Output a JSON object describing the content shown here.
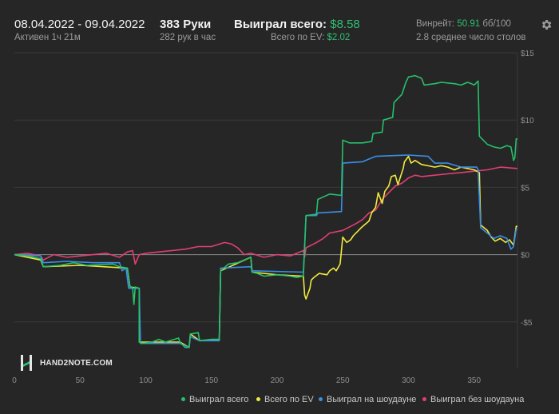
{
  "header": {
    "date_range": "08.04.2022 - 09.04.2022",
    "active_time": "Активен 1ч 21м",
    "hands": "383 Руки",
    "hands_per_hour": "282 рук в час",
    "won_total_label": "Выиграл всего:",
    "won_total_value": "$8.58",
    "ev_total_label": "Всего по EV:",
    "ev_total_value": "$2.02",
    "winrate_label": "Винрейт:",
    "winrate_value": "50.91",
    "winrate_unit": "бб/100",
    "avg_tables": "2.8 среднее число столов"
  },
  "logo_text": "HAND2NOTE.COM",
  "icons": {
    "settings": "gear-icon",
    "logo": "hand2note-logo-icon"
  },
  "colors": {
    "background": "#262626",
    "accent_green": "#2fbf71",
    "won_total": "#27c06b",
    "ev": "#f2ea3c",
    "showdown": "#3a8fe8",
    "non_showdown": "#e23f72",
    "grid": "#3a3a3a",
    "zero_line": "#8a8a8a"
  },
  "chart_data": {
    "type": "line",
    "title": "",
    "xlabel": "",
    "ylabel": "",
    "xlim": [
      0,
      383
    ],
    "ylim": [
      -8.4,
      15
    ],
    "x_ticks": [
      0,
      50,
      100,
      150,
      200,
      250,
      300,
      350
    ],
    "x_tick_labels": [
      "0",
      "50",
      "100",
      "150",
      "200",
      "250",
      "300",
      "350"
    ],
    "y_ticks": [
      15,
      10,
      5,
      0,
      -5
    ],
    "y_tick_labels": [
      "$15",
      "$10",
      "$5",
      "$0",
      "-$5"
    ],
    "y_axis_position": "right",
    "grid": true,
    "legend_position": "bottom-right",
    "series": [
      {
        "name": "Выиграл всего",
        "color": "#27c06b",
        "points": [
          [
            0,
            0
          ],
          [
            10,
            -0.1
          ],
          [
            20,
            -0.3
          ],
          [
            22,
            -0.9
          ],
          [
            35,
            -0.8
          ],
          [
            45,
            -0.6
          ],
          [
            55,
            -0.8
          ],
          [
            75,
            -0.7
          ],
          [
            80,
            -0.9
          ],
          [
            86,
            -1
          ],
          [
            88,
            -2.4
          ],
          [
            90,
            -2.4
          ],
          [
            91,
            -3.7
          ],
          [
            92,
            -2.4
          ],
          [
            95,
            -2.5
          ],
          [
            95,
            -6.5
          ],
          [
            97,
            -6.6
          ],
          [
            105,
            -6.5
          ],
          [
            110,
            -6.3
          ],
          [
            115,
            -6.5
          ],
          [
            125,
            -6.2
          ],
          [
            126,
            -6.5
          ],
          [
            130,
            -6.9
          ],
          [
            133,
            -6.9
          ],
          [
            134,
            -5.9
          ],
          [
            140,
            -5.8
          ],
          [
            141,
            -6.4
          ],
          [
            150,
            -6.3
          ],
          [
            156,
            -6.3
          ],
          [
            157,
            -1.2
          ],
          [
            163,
            -0.7
          ],
          [
            170,
            -0.6
          ],
          [
            180,
            -0.2
          ],
          [
            181,
            -1.3
          ],
          [
            185,
            -1.4
          ],
          [
            190,
            -1.6
          ],
          [
            200,
            -1.5
          ],
          [
            210,
            -1.6
          ],
          [
            215,
            -1.7
          ],
          [
            220,
            -1.6
          ],
          [
            222,
            2.9
          ],
          [
            230,
            3
          ],
          [
            231,
            4.1
          ],
          [
            240,
            4.5
          ],
          [
            249,
            4.4
          ],
          [
            250,
            8.5
          ],
          [
            255,
            8.3
          ],
          [
            265,
            8.3
          ],
          [
            272,
            8.4
          ],
          [
            273,
            9
          ],
          [
            280,
            9.1
          ],
          [
            281,
            10
          ],
          [
            288,
            10.2
          ],
          [
            289,
            11.3
          ],
          [
            295,
            11.9
          ],
          [
            298,
            12.8
          ],
          [
            300,
            13.2
          ],
          [
            305,
            13.3
          ],
          [
            310,
            13.1
          ],
          [
            312,
            12.6
          ],
          [
            320,
            12.7
          ],
          [
            325,
            12.8
          ],
          [
            335,
            12.7
          ],
          [
            340,
            12.6
          ],
          [
            345,
            12.8
          ],
          [
            348,
            12.7
          ],
          [
            350,
            12.6
          ],
          [
            353,
            12.9
          ],
          [
            354,
            8.8
          ],
          [
            360,
            8.2
          ],
          [
            365,
            8
          ],
          [
            370,
            7.9
          ],
          [
            375,
            8.1
          ],
          [
            378,
            8
          ],
          [
            380,
            7
          ],
          [
            381,
            7.2
          ],
          [
            382,
            8.6
          ],
          [
            383,
            8.6
          ]
        ]
      },
      {
        "name": "Всего по EV",
        "color": "#f2ea3c",
        "points": [
          [
            0,
            0
          ],
          [
            20,
            -0.4
          ],
          [
            22,
            -0.9
          ],
          [
            50,
            -0.8
          ],
          [
            86,
            -1
          ],
          [
            88,
            -2.4
          ],
          [
            95,
            -2.5
          ],
          [
            95,
            -6.5
          ],
          [
            126,
            -6.5
          ],
          [
            133,
            -6.9
          ],
          [
            134,
            -5.9
          ],
          [
            141,
            -6.4
          ],
          [
            156,
            -6.3
          ],
          [
            157,
            -1.2
          ],
          [
            180,
            -0.2
          ],
          [
            181,
            -1.3
          ],
          [
            200,
            -1.5
          ],
          [
            220,
            -1.6
          ],
          [
            221,
            -3
          ],
          [
            222,
            -3.3
          ],
          [
            225,
            -2.5
          ],
          [
            226,
            -1.9
          ],
          [
            228,
            -1.7
          ],
          [
            232,
            -1.4
          ],
          [
            238,
            -1.5
          ],
          [
            240,
            -1.2
          ],
          [
            243,
            -1
          ],
          [
            245,
            -1.2
          ],
          [
            248,
            -0.7
          ],
          [
            250,
            1.3
          ],
          [
            253,
            0.9
          ],
          [
            256,
            1.1
          ],
          [
            258,
            1.4
          ],
          [
            264,
            2
          ],
          [
            270,
            2.5
          ],
          [
            272,
            3.1
          ],
          [
            275,
            3.5
          ],
          [
            277,
            4.6
          ],
          [
            280,
            3.8
          ],
          [
            282,
            4.7
          ],
          [
            285,
            5.1
          ],
          [
            287,
            5.8
          ],
          [
            290,
            5.9
          ],
          [
            292,
            5.2
          ],
          [
            295,
            6.1
          ],
          [
            296,
            6.4
          ],
          [
            297,
            6.9
          ],
          [
            300,
            7.3
          ],
          [
            302,
            6.8
          ],
          [
            305,
            7
          ],
          [
            310,
            6.7
          ],
          [
            315,
            6.6
          ],
          [
            320,
            6.5
          ],
          [
            325,
            6.6
          ],
          [
            330,
            6.5
          ],
          [
            335,
            6.3
          ],
          [
            340,
            6.5
          ],
          [
            345,
            6.4
          ],
          [
            350,
            6.3
          ],
          [
            354,
            6.1
          ],
          [
            355,
            2.2
          ],
          [
            360,
            1.8
          ],
          [
            363,
            1.3
          ],
          [
            366,
            1
          ],
          [
            370,
            1.2
          ],
          [
            374,
            0.9
          ],
          [
            377,
            1.1
          ],
          [
            380,
            0.7
          ],
          [
            382,
            2.1
          ],
          [
            383,
            2.1
          ]
        ]
      },
      {
        "name": "Выиграл на шоудауне",
        "color": "#3a8fe8",
        "points": [
          [
            0,
            0
          ],
          [
            20,
            -0.1
          ],
          [
            22,
            -0.6
          ],
          [
            40,
            -0.5
          ],
          [
            60,
            -0.6
          ],
          [
            80,
            -0.6
          ],
          [
            82,
            -1.2
          ],
          [
            85,
            -1
          ],
          [
            87,
            -2.5
          ],
          [
            95,
            -2.5
          ],
          [
            96,
            -6.6
          ],
          [
            125,
            -6.6
          ],
          [
            126,
            -6.6
          ],
          [
            133,
            -6.9
          ],
          [
            134,
            -6.1
          ],
          [
            141,
            -6.4
          ],
          [
            156,
            -6.4
          ],
          [
            157,
            -1
          ],
          [
            180,
            -0.9
          ],
          [
            181,
            -1.2
          ],
          [
            220,
            -1.3
          ],
          [
            222,
            2.9
          ],
          [
            230,
            2.9
          ],
          [
            231,
            3.1
          ],
          [
            249,
            3.2
          ],
          [
            250,
            6.8
          ],
          [
            265,
            6.9
          ],
          [
            270,
            7.1
          ],
          [
            275,
            7.3
          ],
          [
            300,
            7.4
          ],
          [
            315,
            7.3
          ],
          [
            320,
            6.8
          ],
          [
            330,
            6.8
          ],
          [
            340,
            6.5
          ],
          [
            352,
            6.5
          ],
          [
            353,
            6.3
          ],
          [
            355,
            2
          ],
          [
            360,
            1.6
          ],
          [
            365,
            1.2
          ],
          [
            370,
            1.4
          ],
          [
            375,
            1.2
          ],
          [
            378,
            0.4
          ],
          [
            380,
            0.6
          ],
          [
            382,
            1.9
          ],
          [
            383,
            1.9
          ]
        ]
      },
      {
        "name": "Выиграл без шоудауна",
        "color": "#e23f72",
        "points": [
          [
            0,
            0
          ],
          [
            10,
            0.1
          ],
          [
            20,
            -0.1
          ],
          [
            22,
            -0.4
          ],
          [
            30,
            0
          ],
          [
            40,
            -0.2
          ],
          [
            60,
            0
          ],
          [
            70,
            0.1
          ],
          [
            80,
            -0.2
          ],
          [
            86,
            0.2
          ],
          [
            90,
            0.3
          ],
          [
            92,
            -0.7
          ],
          [
            95,
            0
          ],
          [
            100,
            0.1
          ],
          [
            110,
            0.2
          ],
          [
            120,
            0.3
          ],
          [
            130,
            0.4
          ],
          [
            140,
            0.6
          ],
          [
            150,
            0.6
          ],
          [
            160,
            0.9
          ],
          [
            165,
            0.8
          ],
          [
            170,
            0.5
          ],
          [
            175,
            0
          ],
          [
            180,
            0.1
          ],
          [
            190,
            -0.2
          ],
          [
            200,
            0
          ],
          [
            210,
            -0.1
          ],
          [
            215,
            0.1
          ],
          [
            220,
            0.3
          ],
          [
            221,
            -0.2
          ],
          [
            222,
            0.5
          ],
          [
            230,
            0.9
          ],
          [
            235,
            1.2
          ],
          [
            240,
            1.6
          ],
          [
            250,
            1.8
          ],
          [
            260,
            2.3
          ],
          [
            265,
            2.6
          ],
          [
            270,
            3.1
          ],
          [
            275,
            3.3
          ],
          [
            280,
            4.1
          ],
          [
            285,
            4.6
          ],
          [
            290,
            5.1
          ],
          [
            295,
            5.3
          ],
          [
            300,
            5.7
          ],
          [
            305,
            5.9
          ],
          [
            310,
            5.8
          ],
          [
            320,
            5.9
          ],
          [
            330,
            6
          ],
          [
            340,
            6.1
          ],
          [
            350,
            6.2
          ],
          [
            360,
            6.3
          ],
          [
            370,
            6.5
          ],
          [
            383,
            6.4
          ]
        ]
      }
    ]
  }
}
